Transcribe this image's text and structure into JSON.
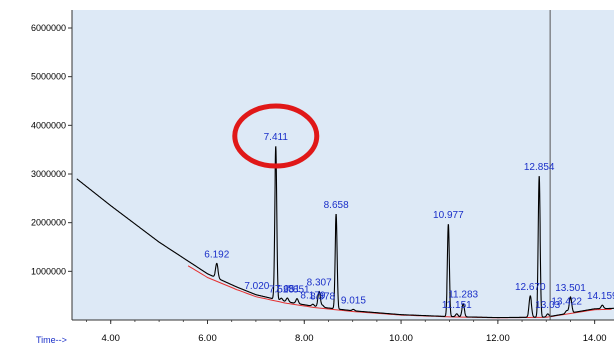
{
  "colors": {
    "plot_background": "#dde9f6",
    "trace": "#000000",
    "baseline": "#e53030",
    "peak_label": "#1a2fc8",
    "highlight_circle": "#e01818",
    "cursor_line": "#555555",
    "axis": "#333333"
  },
  "chart_data": {
    "type": "line",
    "title": "",
    "xlabel": "Time-->",
    "ylabel": "",
    "xlim": [
      3.2,
      14.4
    ],
    "ylim": [
      0,
      6000000
    ],
    "x_ticks": [
      4.0,
      6.0,
      8.0,
      10.0,
      12.0,
      14.0
    ],
    "x_tick_labels": [
      "4.00",
      "6.00",
      "8.00",
      "10.00",
      "12.00",
      "14.00"
    ],
    "y_ticks": [
      1000000,
      2000000,
      3000000,
      4000000,
      5000000,
      6000000
    ],
    "y_tick_labels": [
      "1000000",
      "2000000",
      "3000000",
      "4000000",
      "5000000",
      "6000000"
    ],
    "grid": false,
    "cursor_x": 13.08,
    "highlighted_peak": "7.411",
    "baseline_trace": {
      "x": [
        3.3,
        4.0,
        5.0,
        6.0,
        6.6,
        7.0,
        7.6,
        8.2,
        9.0,
        10.0,
        11.0,
        12.0,
        13.0,
        14.0,
        14.4
      ],
      "y": [
        2900000,
        2350000,
        1600000,
        950000,
        680000,
        520000,
        380000,
        280000,
        190000,
        110000,
        70000,
        50000,
        60000,
        230000,
        240000
      ]
    },
    "peaks": [
      {
        "label": "6.192",
        "rt": 6.192,
        "height": 300000
      },
      {
        "label": "7.020",
        "rt": 7.02,
        "height": 0
      },
      {
        "label": "7.411",
        "rt": 7.411,
        "height": 3150000
      },
      {
        "label": "7.528",
        "rt": 7.528,
        "height": 50000
      },
      {
        "label": "7.651",
        "rt": 7.651,
        "height": 80000
      },
      {
        "label": "7.851",
        "rt": 7.851,
        "height": 100000
      },
      {
        "label": "8.307",
        "rt": 8.307,
        "height": 320000
      },
      {
        "label": "8.179",
        "rt": 8.179,
        "height": 40000
      },
      {
        "label": "8.378",
        "rt": 8.378,
        "height": 40000
      },
      {
        "label": "8.658",
        "rt": 8.658,
        "height": 1950000
      },
      {
        "label": "9.015",
        "rt": 9.015,
        "height": 30000
      },
      {
        "label": "10.977",
        "rt": 10.977,
        "height": 1900000
      },
      {
        "label": "11.151",
        "rt": 11.151,
        "height": 60000
      },
      {
        "label": "11.283",
        "rt": 11.283,
        "height": 270000
      },
      {
        "label": "12.670",
        "rt": 12.67,
        "height": 440000
      },
      {
        "label": "12.854",
        "rt": 12.854,
        "height": 2900000
      },
      {
        "label": "13.03",
        "rt": 13.03,
        "height": 60000
      },
      {
        "label": "13.501",
        "rt": 13.501,
        "height": 330000
      },
      {
        "label": "13.422",
        "rt": 13.422,
        "height": 60000
      },
      {
        "label": "14.159",
        "rt": 14.159,
        "height": 70000
      }
    ]
  }
}
